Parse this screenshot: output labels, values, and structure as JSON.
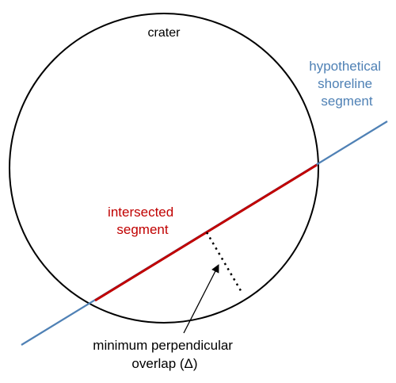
{
  "labels": {
    "crater": "crater",
    "shoreline": [
      "hypothetical",
      "shoreline",
      "segment"
    ],
    "intersected": [
      "intersected",
      "segment"
    ],
    "overlap": [
      "minimum perpendicular",
      "overlap (Δ)"
    ]
  },
  "colors": {
    "crater_outline": "#000000",
    "shoreline": "#4f81b5",
    "intersected": "#c00000",
    "overlap_marker": "#000000",
    "text_default": "#000000"
  }
}
